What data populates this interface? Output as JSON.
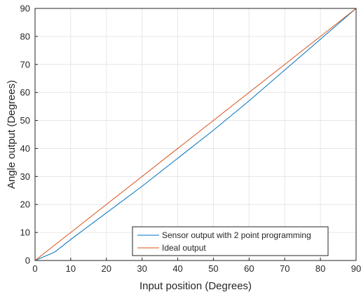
{
  "chart_data": {
    "type": "line",
    "title": "",
    "xlabel": "Input position (Degrees)",
    "ylabel": "Angle output (Degrees)",
    "xlim": [
      0,
      90
    ],
    "ylim": [
      0,
      90
    ],
    "xticks": [
      0,
      10,
      20,
      30,
      40,
      50,
      60,
      70,
      80,
      90
    ],
    "yticks": [
      0,
      10,
      20,
      30,
      40,
      50,
      60,
      70,
      80,
      90
    ],
    "grid": true,
    "legend_position": "bottom-right",
    "series": [
      {
        "name": "Sensor output with 2 point programming",
        "color": "#0072BD",
        "x": [
          0,
          5.5,
          10,
          20,
          30,
          40,
          50,
          60,
          70,
          80,
          90
        ],
        "y": [
          0,
          3,
          7.5,
          17,
          26.5,
          36.5,
          46.5,
          57,
          68,
          79,
          90
        ]
      },
      {
        "name": "Ideal output",
        "color": "#D95319",
        "x": [
          0,
          90
        ],
        "y": [
          0,
          90
        ]
      }
    ]
  }
}
